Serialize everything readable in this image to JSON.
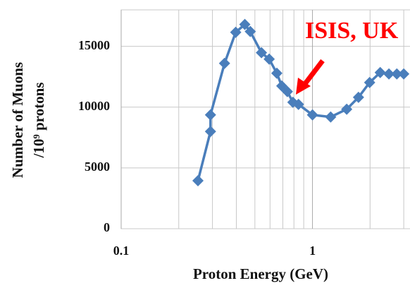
{
  "chart_data": {
    "type": "line",
    "xlabel": "Proton Energy (GeV)",
    "ylabel": [
      "Number of Muons",
      "/10⁹ protons"
    ],
    "annotation": "ISIS, UK",
    "x_log": true,
    "grid": true,
    "color": "#4a7ebb",
    "annotation_color": "#ff0000",
    "x": [
      0.252,
      0.293,
      0.293,
      0.347,
      0.397,
      0.443,
      0.473,
      0.541,
      0.594,
      0.651,
      0.691,
      0.739,
      0.79,
      0.845,
      1.0,
      1.245,
      1.51,
      1.74,
      1.99,
      2.26,
      2.51,
      2.76,
      3.0
    ],
    "series": [
      {
        "name": "Muons",
        "values": [
          3950,
          8000,
          9360,
          13600,
          16160,
          16800,
          16220,
          14480,
          13950,
          12790,
          11740,
          11280,
          10400,
          10230,
          9360,
          9190,
          9830,
          10810,
          12030,
          12850,
          12730,
          12730,
          12730
        ]
      }
    ],
    "xlim": [
      0.1,
      3.1
    ],
    "xticks": [
      0.1,
      1
    ],
    "xminorticks": [
      0.2,
      0.3,
      0.4,
      0.5,
      0.6,
      0.7,
      0.8,
      0.9,
      2,
      3
    ],
    "ylim": [
      0,
      18000
    ],
    "yticks": [
      0,
      5000,
      10000,
      15000
    ]
  }
}
